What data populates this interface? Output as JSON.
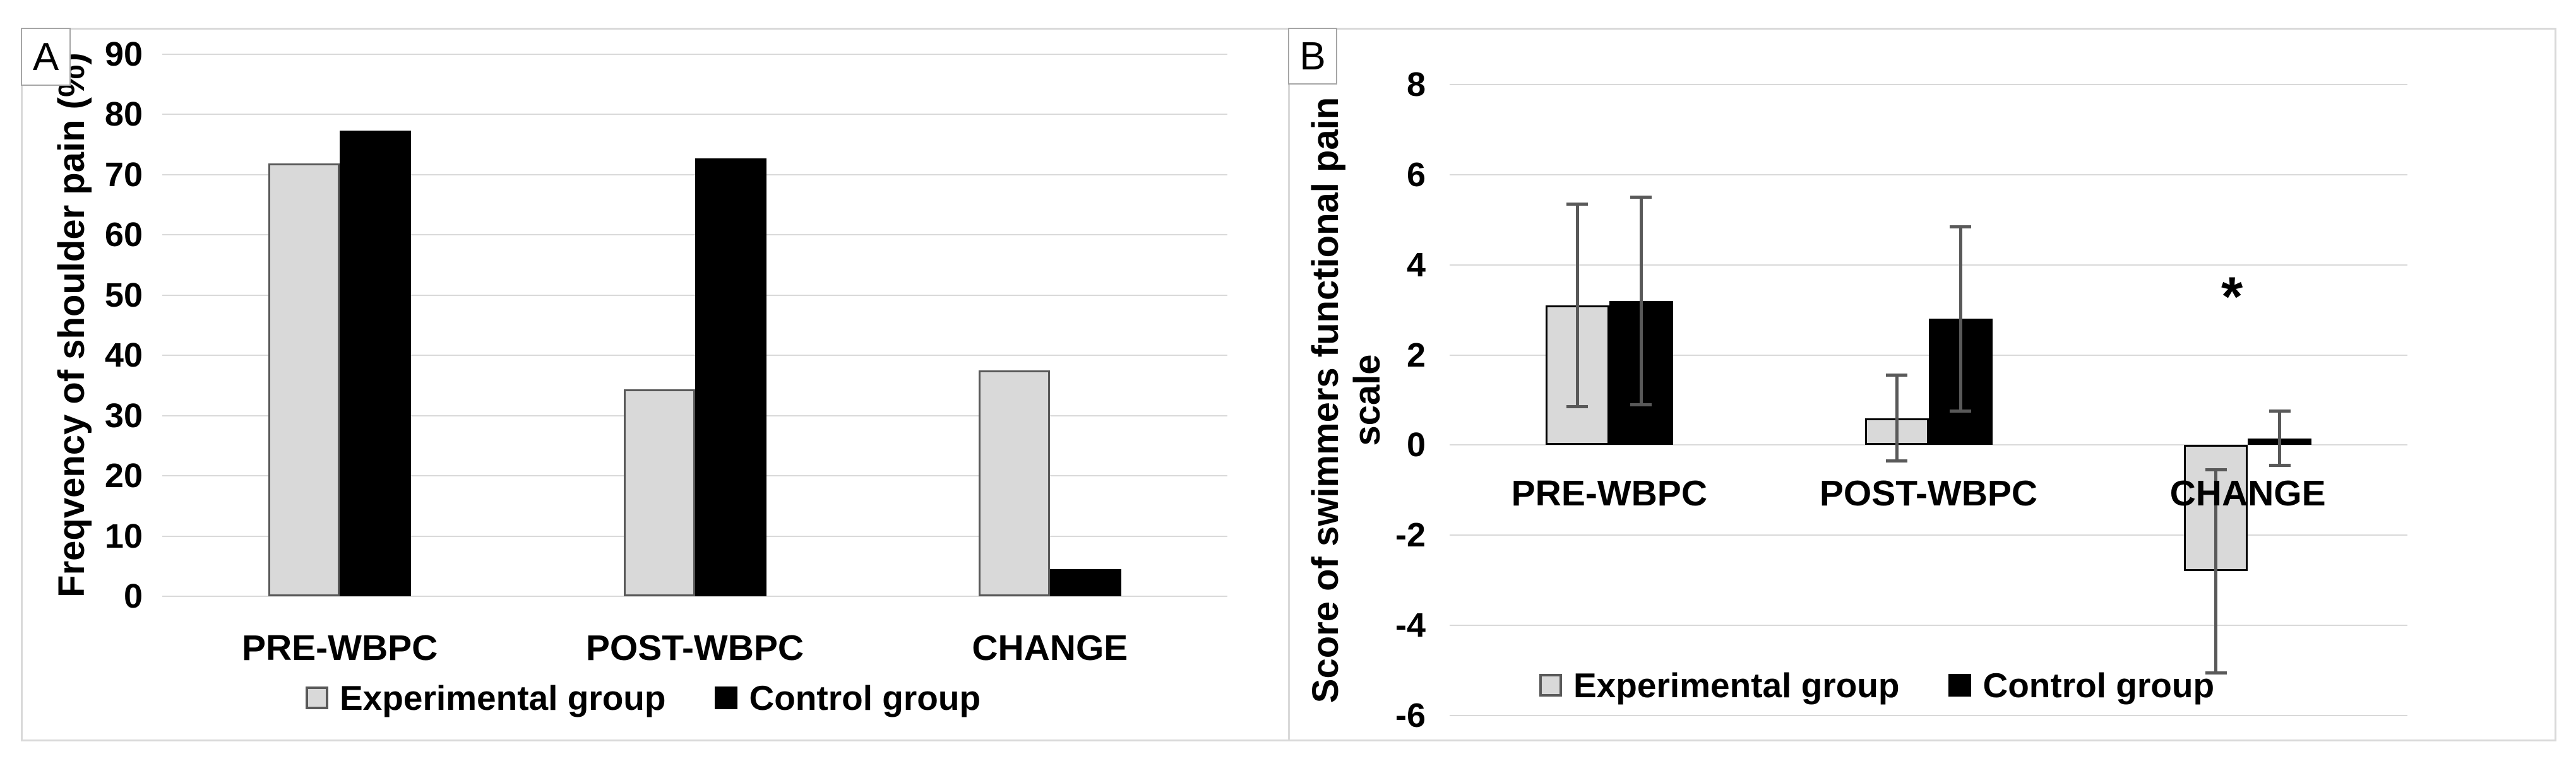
{
  "figure": {
    "background": "#ffffff",
    "panel_border_color": "#d9d9d9",
    "gridline_color": "#d9d9d9",
    "error_bar_color": "#595959",
    "experimental_fill": "#d9d9d9",
    "experimental_border": "#595959",
    "control_fill": "#000000"
  },
  "chart_data": [
    {
      "type": "bar",
      "panel_label": "A",
      "ylabel": "Freqvency of shoulder pain (%)",
      "ylabel_lines": [
        "Freqvency of shoulder pain (%)"
      ],
      "categories": [
        "PRE-WBPC",
        "POST-WBPC",
        "CHANGE"
      ],
      "series": [
        {
          "name": "Experimental group",
          "fill": "#d9d9d9",
          "border": "#595959",
          "values": [
            71.9,
            34.4,
            37.5
          ]
        },
        {
          "name": "Control group",
          "fill": "#000000",
          "border": "#000000",
          "values": [
            77.3,
            72.7,
            4.5
          ]
        }
      ],
      "ylim": [
        0,
        90
      ],
      "yticks": [
        90,
        80,
        70,
        60,
        50,
        40,
        30,
        20,
        10,
        0
      ],
      "grid": true,
      "legend": [
        "Experimental group",
        "Control group"
      ],
      "legend_position": "bottom",
      "annotations": []
    },
    {
      "type": "bar",
      "panel_label": "B",
      "ylabel": "Score of swimmers functional pain scale",
      "ylabel_lines": [
        "Score of swimmers functional pain",
        "scale"
      ],
      "categories": [
        "PRE-WBPC",
        "POST-WBPC",
        "CHANGE"
      ],
      "series": [
        {
          "name": "Experimental group",
          "fill": "#d9d9d9",
          "border": "#000000",
          "values": [
            3.1,
            0.6,
            -2.8
          ],
          "errors": [
            2.25,
            0.95,
            2.25
          ]
        },
        {
          "name": "Control group",
          "fill": "#000000",
          "border": "#000000",
          "values": [
            3.2,
            2.8,
            0.15
          ],
          "errors": [
            2.3,
            2.05,
            0.6
          ]
        }
      ],
      "ylim": [
        -6,
        8
      ],
      "yticks": [
        8,
        6,
        4,
        2,
        0,
        -2,
        -4,
        -6
      ],
      "grid": true,
      "legend": [
        "Experimental group",
        "Control group"
      ],
      "legend_position": "bottom",
      "annotations": [
        {
          "text": "*",
          "category_index": 2,
          "y_value": 3.3
        }
      ]
    }
  ]
}
